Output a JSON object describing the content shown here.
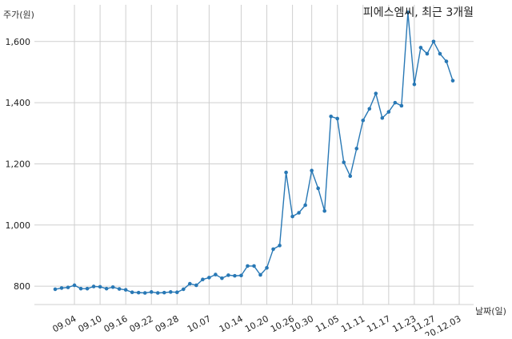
{
  "chart_data": {
    "type": "line",
    "title": "피에스엠씨, 최근 3개월",
    "ylabel": "주가(원)",
    "xlabel": "날짜(일)",
    "ylim": [
      740,
      1720
    ],
    "yticks": [
      800,
      1000,
      1200,
      1400,
      1600
    ],
    "ytick_labels": [
      "800",
      "1,000",
      "1,200",
      "1,400",
      "1,600"
    ],
    "xtick_labels": [
      "09.04",
      "09.10",
      "09.16",
      "09.22",
      "09.28",
      "10.07",
      "10.14",
      "10.20",
      "10.26",
      "10.30",
      "11.05",
      "11.11",
      "11.17",
      "11.23",
      "11.27",
      "20.12.03"
    ],
    "xtick_index": [
      3,
      7,
      11,
      15,
      19,
      24,
      29,
      33,
      37,
      40,
      44,
      48,
      52,
      56,
      59,
      63
    ],
    "grid": true,
    "line_color": "#2878b5",
    "series": [
      {
        "values": [
          790,
          794,
          796,
          803,
          792,
          792,
          799,
          798,
          792,
          797,
          791,
          788,
          780,
          779,
          778,
          781,
          778,
          779,
          781,
          780,
          790,
          808,
          803,
          822,
          828,
          838,
          826,
          836,
          834,
          835,
          866,
          866,
          837,
          860,
          921,
          933,
          1172,
          1028,
          1040,
          1065,
          1178,
          1120,
          1046,
          1355,
          1348,
          1205,
          1160,
          1250,
          1342,
          1380,
          1430,
          1350,
          1370,
          1400,
          1390,
          1695,
          1460,
          1580,
          1560,
          1600,
          1560,
          1535,
          1472
        ]
      }
    ]
  }
}
